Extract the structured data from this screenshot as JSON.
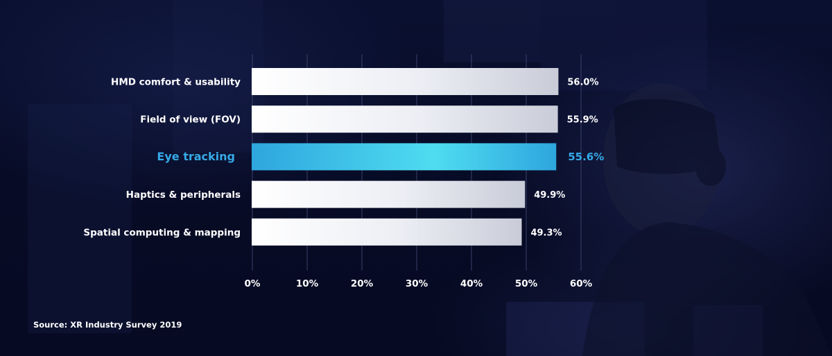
{
  "chart_data": {
    "type": "bar",
    "orientation": "horizontal",
    "categories": [
      "HMD comfort & usability",
      "Field of view (FOV)",
      "Eye tracking",
      "Haptics & peripherals",
      "Spatial computing & mapping"
    ],
    "values": [
      56.0,
      55.9,
      55.6,
      49.9,
      49.3
    ],
    "value_labels": [
      "56.0%",
      "55.9%",
      "55.6%",
      "49.9%",
      "49.3%"
    ],
    "highlighted_category": "Eye tracking",
    "x_ticks": [
      "0%",
      "10%",
      "20%",
      "30%",
      "40%",
      "50%",
      "60%"
    ],
    "xlim": [
      0,
      60
    ],
    "grid": true,
    "colors": {
      "bar": "#eef0f6",
      "highlight_bar_start": "#2ea6de",
      "highlight_bar_end": "#4fdcf0",
      "highlight_text": "#36a9e6",
      "label": "#ffffff",
      "gridline": "#39406a"
    }
  },
  "source": "Source: XR Industry Survey 2019"
}
